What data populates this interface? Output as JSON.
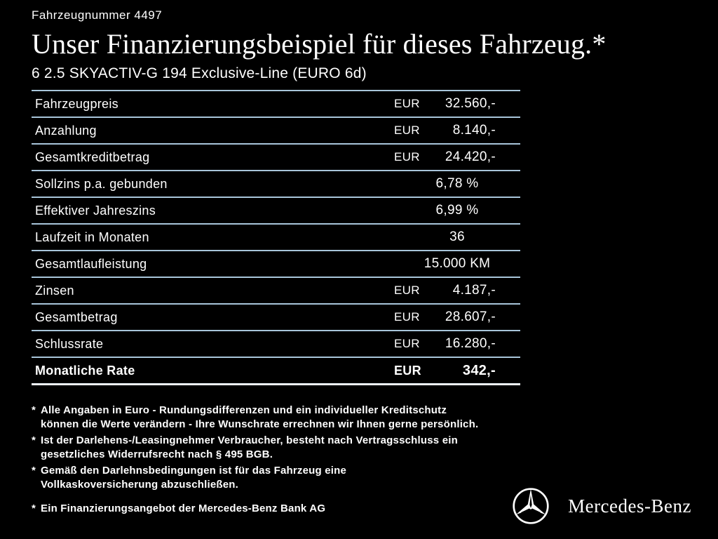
{
  "page": {
    "vehicle_number": "Fahrzeugnummer 4497",
    "title": "Unser Finanzierungsbeispiel für dieses Fahrzeug.*",
    "subtitle": "6 2.5 SKYACTIV-G 194 Exclusive-Line (EURO 6d)"
  },
  "table": {
    "rows": [
      {
        "label": "Fahrzeugpreis",
        "currency": "EUR",
        "value": "32.560,-",
        "bold": false
      },
      {
        "label": "Anzahlung",
        "currency": "EUR",
        "value": "8.140,-",
        "bold": false
      },
      {
        "label": "Gesamtkreditbetrag",
        "currency": "EUR",
        "value": "24.420,-",
        "bold": false
      },
      {
        "label": "Sollzins p.a. gebunden",
        "currency": "",
        "value": "6,78 %",
        "bold": false
      },
      {
        "label": "Effektiver Jahreszins",
        "currency": "",
        "value": "6,99 %",
        "bold": false
      },
      {
        "label": "Laufzeit in Monaten",
        "currency": "",
        "value": "36",
        "bold": false
      },
      {
        "label": "Gesamtlaufleistung",
        "currency": "",
        "value": "15.000 KM",
        "bold": false
      },
      {
        "label": "Zinsen",
        "currency": "EUR",
        "value": "4.187,-",
        "bold": false
      },
      {
        "label": "Gesamtbetrag",
        "currency": "EUR",
        "value": "28.607,-",
        "bold": false
      },
      {
        "label": "Schlussrate",
        "currency": "EUR",
        "value": "16.280,-",
        "bold": false
      },
      {
        "label": "Monatliche Rate",
        "currency": "EUR",
        "value": "342,-",
        "bold": true
      }
    ]
  },
  "footnote_marker": "*",
  "footnotes": [
    {
      "lines": [
        "Alle Angaben in Euro - Rundungsdifferenzen und ein individueller Kreditschutz",
        "können die Werte verändern - Ihre Wunschrate errechnen wir Ihnen gerne persönlich."
      ]
    },
    {
      "lines": [
        "Ist der Darlehens-/Leasingnehmer Verbraucher, besteht nach Vertragsschluss ein",
        "gesetzliches Widerrufsrecht nach § 495 BGB."
      ]
    },
    {
      "lines": [
        "Gemäß den Darlehnsbedingungen ist für das Fahrzeug eine",
        "Vollkaskoversicherung abzuschließen."
      ]
    }
  ],
  "bank_note": "Ein Finanzierungsangebot der Mercedes-Benz Bank AG",
  "brand": {
    "logo": "mercedes-star-icon",
    "wordmark": "Mercedes-Benz"
  },
  "colors": {
    "background": "#000000",
    "text": "#ffffff",
    "table_line": "#a8c5da",
    "final_line": "#eef5fa"
  }
}
